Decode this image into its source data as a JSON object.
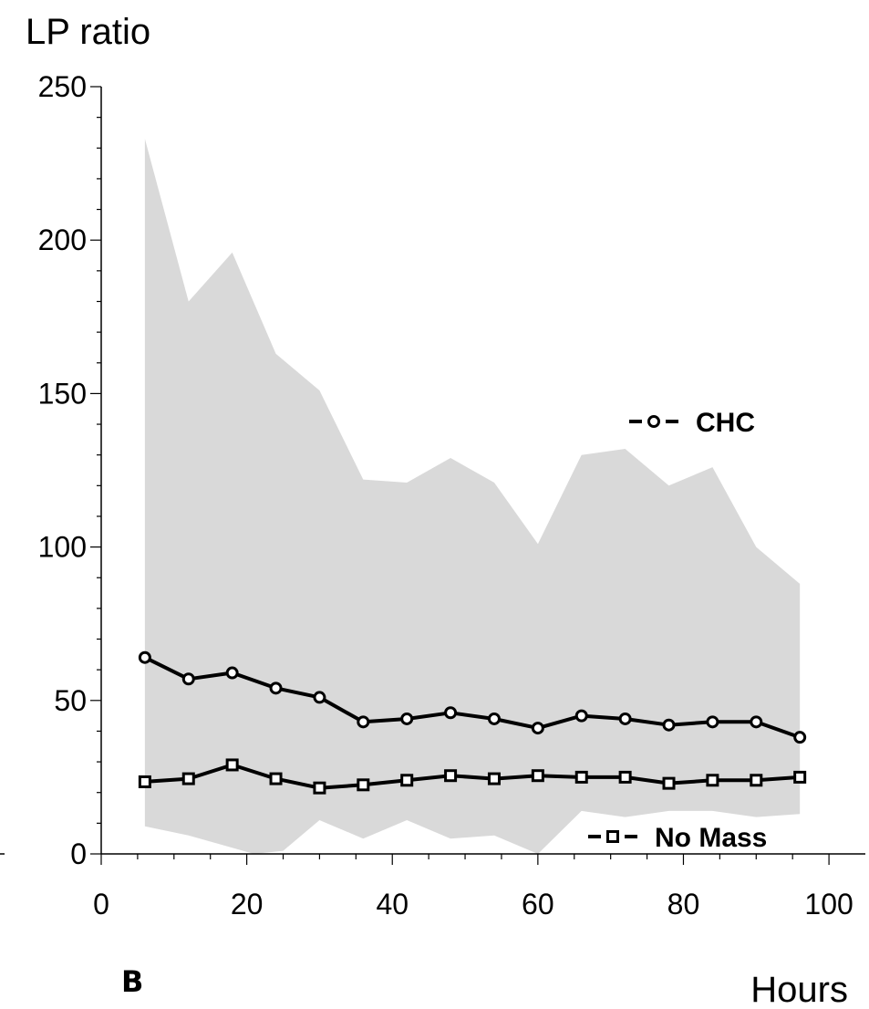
{
  "panel_label": "B",
  "chart_data": {
    "type": "line",
    "ylabel": "LP ratio",
    "xlabel": "Hours",
    "xlim": [
      0,
      105
    ],
    "ylim": [
      0,
      250
    ],
    "x_ticks": [
      0,
      20,
      40,
      60,
      80,
      100
    ],
    "y_ticks": [
      0,
      50,
      100,
      150,
      200,
      250
    ],
    "grid": false,
    "legend_placement": "inline, next to each series",
    "series": [
      {
        "name": "CHC",
        "marker": "circle",
        "x": [
          6,
          12,
          18,
          24,
          30,
          36,
          42,
          48,
          54,
          60,
          66,
          72,
          78,
          84,
          90,
          96
        ],
        "values": [
          64,
          57,
          59,
          54,
          51,
          43,
          44,
          46,
          44,
          41,
          45,
          44,
          42,
          43,
          43,
          38
        ]
      },
      {
        "name": "No Mass",
        "marker": "square",
        "x": [
          6,
          12,
          18,
          24,
          30,
          36,
          42,
          48,
          54,
          60,
          66,
          72,
          78,
          84,
          90,
          96
        ],
        "values": [
          23.5,
          24.5,
          29,
          24.5,
          21.5,
          22.5,
          24,
          25.5,
          24.5,
          25.5,
          25,
          25,
          23,
          24,
          24,
          25
        ]
      }
    ],
    "band": {
      "color": "#d9d9d9",
      "upper": {
        "x": [
          6,
          12,
          18,
          24,
          30,
          36,
          42,
          48,
          54,
          60,
          66,
          72,
          78,
          84,
          90,
          96
        ],
        "values": [
          233,
          180,
          196,
          163,
          151,
          122,
          121,
          129,
          121,
          101,
          130,
          132,
          120,
          126,
          100,
          88
        ]
      },
      "lower": {
        "x": [
          6,
          12,
          18,
          21,
          25,
          30,
          36,
          42,
          48,
          54,
          60,
          66,
          72,
          78,
          84,
          90,
          96
        ],
        "values": [
          9,
          6,
          2,
          0,
          1,
          11,
          5,
          11,
          5,
          6,
          0,
          14,
          12,
          14,
          14,
          12,
          13
        ]
      }
    }
  }
}
